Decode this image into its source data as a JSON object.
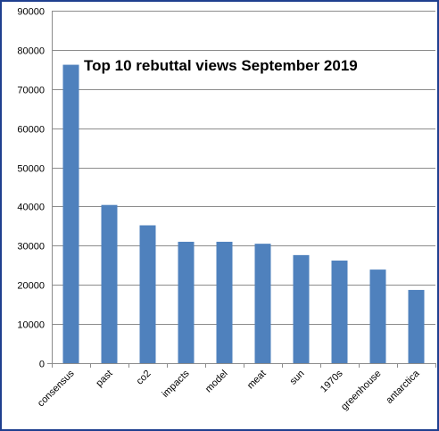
{
  "chart_data": {
    "type": "bar",
    "title": "Top 10 rebuttal views September 2019",
    "xlabel": "",
    "ylabel": "",
    "categories": [
      "consensus",
      "past",
      "co2",
      "impacts",
      "model",
      "meat",
      "sun",
      "1970s",
      "greenhouse",
      "antarctica"
    ],
    "values": [
      76200,
      40400,
      35200,
      31000,
      31000,
      30500,
      27600,
      26200,
      23900,
      18700
    ],
    "ylim": [
      0,
      90000
    ],
    "yticks": [
      0,
      10000,
      20000,
      30000,
      40000,
      50000,
      60000,
      70000,
      80000,
      90000
    ],
    "grid": true,
    "legend": "none",
    "bar_color": "#4f81bd",
    "grid_color": "#8c8c8c",
    "frame_color": "#1f3f8f"
  }
}
